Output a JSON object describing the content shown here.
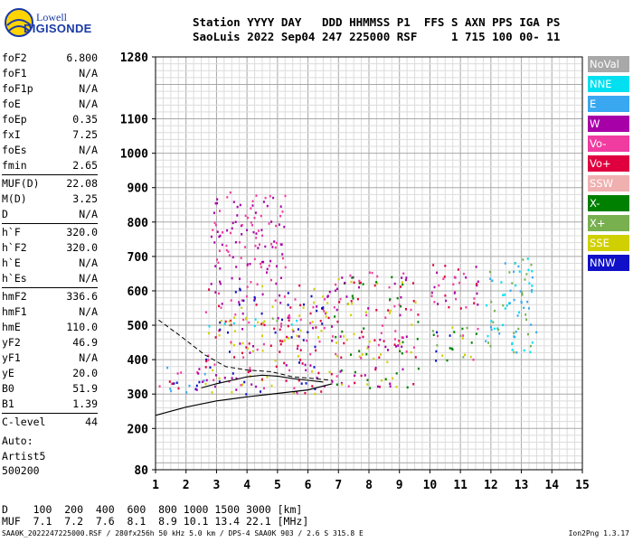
{
  "logo": {
    "line1": "Lowell",
    "line2": "DIGISONDE"
  },
  "header": {
    "line1": "Station YYYY DAY   DDD HHMMSS P1  FFS S AXN PPS IGA PS",
    "line2": "SaoLuis 2022 Sep04 247 225000 RSF     1 715 100 00- 11"
  },
  "parameters": [
    [
      {
        "name": "foF2",
        "value": "6.800"
      },
      {
        "name": "foF1",
        "value": "N/A"
      },
      {
        "name": "foF1p",
        "value": "N/A"
      },
      {
        "name": "foE",
        "value": "N/A"
      },
      {
        "name": "foEp",
        "value": "0.35"
      },
      {
        "name": "fxI",
        "value": "7.25"
      },
      {
        "name": "foEs",
        "value": "N/A"
      },
      {
        "name": "fmin",
        "value": "2.65"
      }
    ],
    [
      {
        "name": "MUF(D)",
        "value": "22.08"
      },
      {
        "name": "M(D)",
        "value": "3.25"
      },
      {
        "name": "D",
        "value": "N/A"
      }
    ],
    [
      {
        "name": "h`F",
        "value": "320.0"
      },
      {
        "name": "h`F2",
        "value": "320.0"
      },
      {
        "name": "h`E",
        "value": "N/A"
      },
      {
        "name": "h`Es",
        "value": "N/A"
      }
    ],
    [
      {
        "name": "hmF2",
        "value": "336.6"
      },
      {
        "name": "hmF1",
        "value": "N/A"
      },
      {
        "name": "hmE",
        "value": "110.0"
      },
      {
        "name": "yF2",
        "value": "46.9"
      },
      {
        "name": "yF1",
        "value": "N/A"
      },
      {
        "name": "yE",
        "value": "20.0"
      },
      {
        "name": "B0",
        "value": "51.9"
      },
      {
        "name": "B1",
        "value": "1.39"
      }
    ],
    [
      {
        "name": "C-level",
        "value": "44"
      }
    ]
  ],
  "auto": {
    "line1": "Auto:",
    "line2": "Artist5",
    "line3": "500200"
  },
  "muf_table": {
    "line1": "D    100  200  400  600  800 1000 1500 3000 [km]",
    "line2": "MUF  7.1  7.2  7.6  8.1  8.9 10.1 13.4 22.1 [MHz]"
  },
  "footer": {
    "left": "SAA0K_2022247225000.RSF / 280fx256h 50 kHz 5.0 km / DPS-4 SAA0K 903 / 2.6 S 315.8 E",
    "right": "Ion2Png 1.3.17"
  },
  "legend": [
    {
      "label": "NoVal",
      "color": "#a8a8a8"
    },
    {
      "label": "NNE",
      "color": "#00e0f0"
    },
    {
      "label": "E",
      "color": "#3aa8f0"
    },
    {
      "label": "W",
      "color": "#a800a8"
    },
    {
      "label": "Vo-",
      "color": "#f03ca0"
    },
    {
      "label": "Vo+",
      "color": "#e00040"
    },
    {
      "label": "SSW",
      "color": "#f0b0b0"
    },
    {
      "label": "X-",
      "color": "#008000"
    },
    {
      "label": "X+",
      "color": "#78b050"
    },
    {
      "label": "SSE",
      "color": "#d0d000"
    },
    {
      "label": "NNW",
      "color": "#1010c8"
    }
  ],
  "chart_data": {
    "type": "scatter",
    "xlabel": "",
    "ylabel": "",
    "x_unit": "MHz",
    "y_unit": "km",
    "xlim": [
      1,
      15
    ],
    "ylim": [
      80,
      1280
    ],
    "xticks": [
      1,
      2,
      3,
      4,
      5,
      6,
      7,
      8,
      9,
      10,
      11,
      12,
      13,
      14,
      15
    ],
    "yticks": [
      80,
      200,
      300,
      400,
      500,
      600,
      700,
      800,
      900,
      1000,
      1100,
      1280
    ],
    "grid": true,
    "echo_clusters": [
      {
        "x": [
          1.1,
          2.6
        ],
        "y": [
          300,
          390
        ],
        "colors": [
          "#a800a8",
          "#f03ca0",
          "#1010c8",
          "#3aa8f0",
          "#e00040"
        ]
      },
      {
        "x": [
          2.6,
          6.5
        ],
        "y": [
          300,
          620
        ],
        "colors": [
          "#a800a8",
          "#f03ca0",
          "#e00040",
          "#1010c8",
          "#d0d000"
        ]
      },
      {
        "x": [
          2.7,
          5.8
        ],
        "y": [
          500,
          530
        ],
        "colors": [
          "#d0d000",
          "#00e0f0",
          "#78b050"
        ]
      },
      {
        "x": [
          2.8,
          5.3
        ],
        "y": [
          620,
          890
        ],
        "colors": [
          "#a800a8",
          "#f03ca0"
        ]
      },
      {
        "x": [
          6.5,
          9.6
        ],
        "y": [
          320,
          660
        ],
        "colors": [
          "#a800a8",
          "#f03ca0",
          "#e00040",
          "#008000",
          "#d0d000"
        ]
      },
      {
        "x": [
          10.0,
          11.6
        ],
        "y": [
          400,
          500
        ],
        "colors": [
          "#008000",
          "#78b050",
          "#f03ca0",
          "#d0d000",
          "#1010c8"
        ]
      },
      {
        "x": [
          10.0,
          11.6
        ],
        "y": [
          550,
          680
        ],
        "colors": [
          "#a800a8",
          "#f03ca0",
          "#e00040"
        ]
      },
      {
        "x": [
          11.8,
          13.5
        ],
        "y": [
          420,
          700
        ],
        "colors": [
          "#00e0f0",
          "#3aa8f0",
          "#78b050"
        ]
      }
    ],
    "profile_curve": {
      "x": [
        1.0,
        2.0,
        3.0,
        4.0,
        5.0,
        6.0,
        6.8
      ],
      "y": [
        238,
        262,
        280,
        292,
        302,
        312,
        330
      ]
    },
    "profile_dashed": {
      "x": [
        1.1,
        1.8,
        2.6,
        3.3,
        4.0,
        4.8,
        5.5,
        6.2,
        6.8
      ],
      "y": [
        515,
        470,
        415,
        380,
        370,
        365,
        350,
        345,
        340
      ]
    },
    "virtual_height_trace": {
      "x": [
        2.5,
        3.0,
        3.5,
        4.0,
        4.5,
        5.0,
        5.5,
        6.0,
        6.5
      ],
      "y": [
        318,
        330,
        340,
        350,
        355,
        352,
        345,
        340,
        335
      ]
    }
  }
}
